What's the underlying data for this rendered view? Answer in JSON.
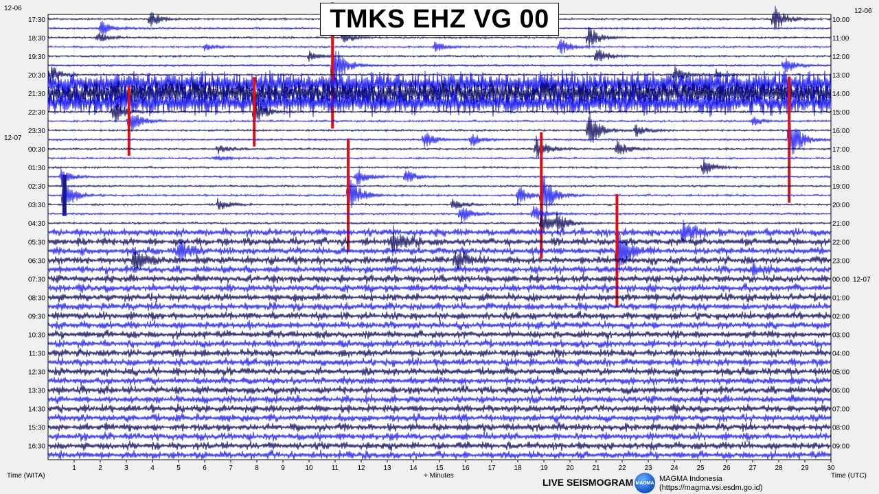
{
  "title": "TMKS EHZ VG 00",
  "chart_data": {
    "type": "helicorder",
    "station": "TMKS",
    "channel": "EHZ",
    "network": "VG",
    "location": "00",
    "xlabel": "+ Minutes",
    "left_axis_label": "Time (WITA)",
    "right_axis_label": "Time (UTC)",
    "x_ticks": [
      "1",
      "2",
      "3",
      "4",
      "5",
      "6",
      "7",
      "8",
      "9",
      "10",
      "11",
      "12",
      "13",
      "14",
      "15",
      "16",
      "17",
      "18",
      "19",
      "20",
      "21",
      "22",
      "23",
      "24",
      "25",
      "26",
      "27",
      "28",
      "29",
      "30"
    ],
    "xlim": [
      0,
      30
    ],
    "rows_per_hour": 2,
    "left_date_labels": [
      {
        "text": "12-06",
        "hour_index": 0
      },
      {
        "text": "12-07",
        "hour_index": 7
      }
    ],
    "right_date_labels": [
      {
        "text": "12-06",
        "hour_index": 0
      },
      {
        "text": "12-07",
        "hour_index": 14
      }
    ],
    "left_hours": [
      "17:30",
      "18:30",
      "19:30",
      "20:30",
      "21:30",
      "22:30",
      "23:30",
      "00:30",
      "01:30",
      "02:30",
      "03:30",
      "04:30",
      "05:30",
      "06:30",
      "07:30",
      "08:30",
      "09:30",
      "10:30",
      "11:30",
      "12:30",
      "13:30",
      "14:30",
      "15:30",
      "16:30"
    ],
    "right_hours": [
      "10:00",
      "11:00",
      "12:00",
      "13:00",
      "14:00",
      "15:00",
      "16:00",
      "17:00",
      "18:00",
      "19:00",
      "20:00",
      "21:00",
      "22:00",
      "23:00",
      "00:00",
      "01:00",
      "02:00",
      "03:00",
      "04:00",
      "05:00",
      "06:00",
      "07:00",
      "08:00",
      "09:00"
    ],
    "trace_colors": [
      "#0a0a5a",
      "#1a1af0"
    ],
    "clip_color": "#e01010",
    "events": [
      {
        "row": 0,
        "minute": 3.9,
        "amp": 14
      },
      {
        "row": 0,
        "minute": 27.8,
        "amp": 22
      },
      {
        "row": 1,
        "minute": 2.0,
        "amp": 14
      },
      {
        "row": 1,
        "minute": 12.3,
        "amp": 10
      },
      {
        "row": 1,
        "minute": 16.5,
        "amp": 14
      },
      {
        "row": 2,
        "minute": 1.9,
        "amp": 8
      },
      {
        "row": 2,
        "minute": 11.3,
        "amp": 10
      },
      {
        "row": 2,
        "minute": 20.7,
        "amp": 18
      },
      {
        "row": 3,
        "minute": 6.0,
        "amp": 6
      },
      {
        "row": 3,
        "minute": 14.8,
        "amp": 8
      },
      {
        "row": 3,
        "minute": 19.6,
        "amp": 14
      },
      {
        "row": 4,
        "minute": 21.0,
        "amp": 14
      },
      {
        "row": 4,
        "minute": 10.0,
        "amp": 8
      },
      {
        "row": 5,
        "minute": 10.9,
        "amp": 40,
        "clip": true
      },
      {
        "row": 5,
        "minute": 28.2,
        "amp": 14
      },
      {
        "row": 6,
        "minute": 0.1,
        "amp": 14
      },
      {
        "row": 6,
        "minute": 24.0,
        "amp": 14
      },
      {
        "row": 6,
        "minute": 25.6,
        "amp": 8
      },
      {
        "row": 10,
        "minute": 2.5,
        "amp": 20
      },
      {
        "row": 10,
        "minute": 7.9,
        "amp": 22,
        "clip": true
      },
      {
        "row": 11,
        "minute": 3.1,
        "amp": 22,
        "clip": true
      },
      {
        "row": 11,
        "minute": 27.0,
        "amp": 8
      },
      {
        "row": 12,
        "minute": 20.7,
        "amp": 30
      },
      {
        "row": 12,
        "minute": 22.5,
        "amp": 10
      },
      {
        "row": 13,
        "minute": 14.4,
        "amp": 14
      },
      {
        "row": 13,
        "minute": 16.2,
        "amp": 12
      },
      {
        "row": 13,
        "minute": 28.4,
        "amp": 40,
        "clip": true
      },
      {
        "row": 14,
        "minute": 18.7,
        "amp": 20
      },
      {
        "row": 14,
        "minute": 21.8,
        "amp": 14
      },
      {
        "row": 14,
        "minute": 6.5,
        "amp": 8
      },
      {
        "row": 15,
        "minute": 6.4,
        "amp": 6
      },
      {
        "row": 16,
        "minute": 25.1,
        "amp": 14
      },
      {
        "row": 17,
        "minute": 0.5,
        "amp": 12
      },
      {
        "row": 17,
        "minute": 11.8,
        "amp": 16
      },
      {
        "row": 17,
        "minute": 13.7,
        "amp": 12
      },
      {
        "row": 19,
        "minute": 0.6,
        "amp": 26,
        "block": true
      },
      {
        "row": 19,
        "minute": 11.5,
        "amp": 36,
        "clip": true
      },
      {
        "row": 19,
        "minute": 18.0,
        "amp": 16
      },
      {
        "row": 19,
        "minute": 18.9,
        "amp": 40,
        "clip": true
      },
      {
        "row": 20,
        "minute": 6.5,
        "amp": 10
      },
      {
        "row": 20,
        "minute": 15.5,
        "amp": 8
      },
      {
        "row": 21,
        "minute": 15.8,
        "amp": 16
      },
      {
        "row": 21,
        "minute": 18.6,
        "amp": 14
      },
      {
        "row": 22,
        "minute": 18.9,
        "amp": 20
      },
      {
        "row": 22,
        "minute": 19.5,
        "amp": 14
      },
      {
        "row": 23,
        "minute": 24.3,
        "amp": 20
      },
      {
        "row": 24,
        "minute": 13.2,
        "amp": 18
      },
      {
        "row": 25,
        "minute": 5.0,
        "amp": 18
      },
      {
        "row": 25,
        "minute": 21.8,
        "amp": 36,
        "clip": true
      },
      {
        "row": 26,
        "minute": 3.3,
        "amp": 20
      },
      {
        "row": 26,
        "minute": 15.6,
        "amp": 16
      },
      {
        "row": 27,
        "minute": 27.0,
        "amp": 10
      }
    ],
    "noisy_rows": [
      7,
      8,
      9
    ],
    "busy_rows_from": 23
  },
  "footer": {
    "live_label": "LIVE SEISMOGRAM",
    "org_name": "MAGMA Indonesia",
    "org_url": "(https://magma.vsi.esdm.go.id)",
    "logo_text": "MAGMA"
  }
}
